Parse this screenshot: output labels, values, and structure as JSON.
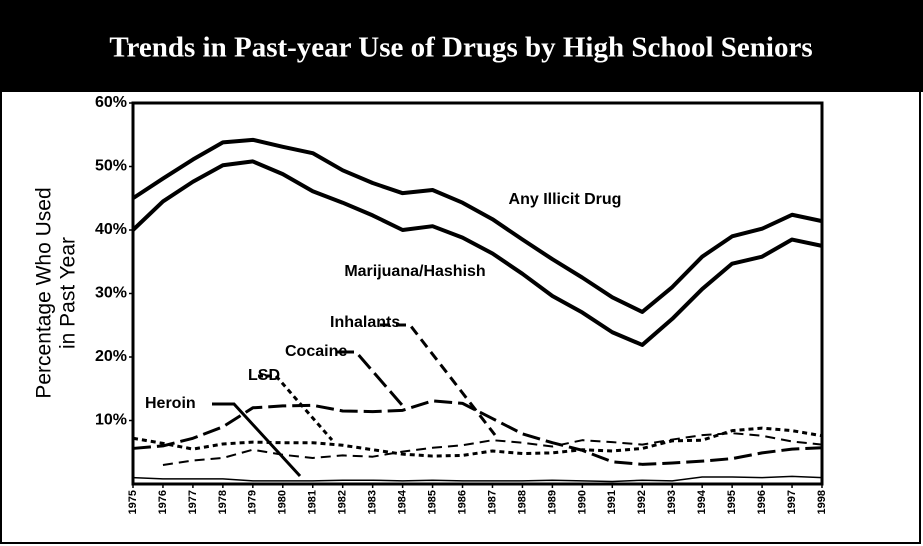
{
  "chart_data": {
    "type": "line",
    "title": "Trends in Past-year Use of Drugs by High School Seniors",
    "ylabel": [
      "Percentage Who Used",
      "in Past Year"
    ],
    "x": [
      1975,
      1976,
      1977,
      1978,
      1979,
      1980,
      1981,
      1982,
      1983,
      1984,
      1985,
      1986,
      1987,
      1988,
      1989,
      1990,
      1991,
      1992,
      1993,
      1994,
      1995,
      1996,
      1997,
      1998
    ],
    "xlim": [
      1975,
      1998
    ],
    "xticks": [
      1975,
      1976,
      1977,
      1978,
      1979,
      1980,
      1981,
      1982,
      1983,
      1984,
      1985,
      1986,
      1987,
      1988,
      1989,
      1990,
      1991,
      1992,
      1993,
      1994,
      1995,
      1996,
      1997,
      1998
    ],
    "ylim": [
      0,
      60
    ],
    "yticks": [
      {
        "value": 10,
        "label": "10%"
      },
      {
        "value": 20,
        "label": "20%"
      },
      {
        "value": 30,
        "label": "30%"
      },
      {
        "value": 40,
        "label": "40%"
      },
      {
        "value": 50,
        "label": "50%"
      },
      {
        "value": 60,
        "label": "60%"
      }
    ],
    "series": [
      {
        "name": "Any Illicit Drug",
        "color": "#000000",
        "dash": "none",
        "width": 4,
        "values": [
          45.0,
          48.1,
          51.1,
          53.8,
          54.2,
          53.1,
          52.1,
          49.4,
          47.4,
          45.8,
          46.3,
          44.3,
          41.7,
          38.5,
          35.4,
          32.5,
          29.4,
          27.1,
          31.0,
          35.8,
          39.0,
          40.2,
          42.4,
          41.4
        ]
      },
      {
        "name": "Marijuana/Hashish",
        "color": "#000000",
        "dash": "none",
        "width": 4,
        "values": [
          40.0,
          44.5,
          47.6,
          50.2,
          50.8,
          48.8,
          46.1,
          44.3,
          42.3,
          40.0,
          40.6,
          38.8,
          36.3,
          33.1,
          29.6,
          27.0,
          23.9,
          21.9,
          26.0,
          30.7,
          34.7,
          35.8,
          38.5,
          37.5
        ]
      },
      {
        "name": "Inhalants",
        "color": "#000000",
        "dash": "10 6",
        "width": 2,
        "values": [
          null,
          3.0,
          3.7,
          4.1,
          5.4,
          4.6,
          4.1,
          4.5,
          4.3,
          5.1,
          5.7,
          6.1,
          6.9,
          6.5,
          5.9,
          6.9,
          6.6,
          6.2,
          7.0,
          7.7,
          8.0,
          7.6,
          6.7,
          6.2
        ]
      },
      {
        "name": "Cocaine",
        "color": "#000000",
        "dash": "18 6",
        "width": 3,
        "values": [
          5.6,
          6.0,
          7.2,
          9.0,
          12.0,
          12.3,
          12.4,
          11.5,
          11.4,
          11.6,
          13.1,
          12.7,
          10.3,
          7.9,
          6.5,
          5.3,
          3.5,
          3.1,
          3.3,
          3.6,
          4.0,
          4.9,
          5.5,
          5.7
        ]
      },
      {
        "name": "LSD",
        "color": "#000000",
        "dash": "5 4",
        "width": 3,
        "values": [
          7.2,
          6.4,
          5.5,
          6.3,
          6.6,
          6.5,
          6.5,
          6.1,
          5.4,
          4.7,
          4.4,
          4.5,
          5.2,
          4.8,
          4.9,
          5.4,
          5.2,
          5.6,
          6.8,
          6.9,
          8.4,
          8.8,
          8.4,
          7.6
        ]
      },
      {
        "name": "Heroin",
        "color": "#000000",
        "dash": "none",
        "width": 1.5,
        "values": [
          1.0,
          0.8,
          0.8,
          0.8,
          0.5,
          0.5,
          0.5,
          0.6,
          0.6,
          0.5,
          0.6,
          0.5,
          0.5,
          0.5,
          0.6,
          0.5,
          0.4,
          0.6,
          0.5,
          1.1,
          1.1,
          1.0,
          1.2,
          1.0
        ]
      }
    ]
  }
}
